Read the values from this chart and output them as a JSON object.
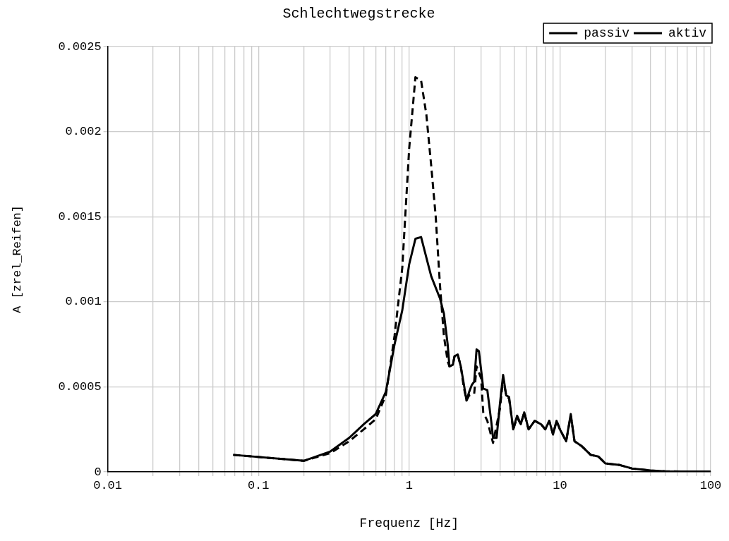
{
  "chart_data": {
    "type": "line",
    "title": "Schlechtwegstrecke",
    "xlabel": "Frequenz [Hz]",
    "ylabel": "A [zrel_Reifen]",
    "log": "x",
    "grid": true,
    "legend": "top right",
    "marker": "none",
    "xlim": [
      0.01,
      100
    ],
    "ylim": [
      0,
      0.0025
    ],
    "xticks": [
      0.01,
      {
        "value": 0.02,
        "label": null
      },
      {
        "value": 0.03,
        "label": null
      },
      {
        "value": 0.04,
        "label": null
      },
      {
        "value": 0.05,
        "label": null
      },
      {
        "value": 0.06,
        "label": null
      },
      {
        "value": 0.07,
        "label": null
      },
      {
        "value": 0.08,
        "label": null
      },
      {
        "value": 0.09,
        "label": null
      },
      0.1,
      {
        "value": 0.2,
        "label": null
      },
      {
        "value": 0.3,
        "label": null
      },
      {
        "value": 0.4,
        "label": null
      },
      {
        "value": 0.5,
        "label": null
      },
      {
        "value": 0.6,
        "label": null
      },
      {
        "value": 0.7,
        "label": null
      },
      {
        "value": 0.8,
        "label": null
      },
      {
        "value": 0.9,
        "label": null
      },
      1,
      {
        "value": 2,
        "label": null
      },
      {
        "value": 3,
        "label": null
      },
      {
        "value": 4,
        "label": null
      },
      {
        "value": 5,
        "label": null
      },
      {
        "value": 6,
        "label": null
      },
      {
        "value": 7,
        "label": null
      },
      {
        "value": 8,
        "label": null
      },
      {
        "value": 9,
        "label": null
      },
      10,
      {
        "value": 20,
        "label": null
      },
      {
        "value": 30,
        "label": null
      },
      {
        "value": 40,
        "label": null
      },
      {
        "value": 50,
        "label": null
      },
      {
        "value": 60,
        "label": null
      },
      {
        "value": 70,
        "label": null
      },
      {
        "value": 80,
        "label": null
      },
      {
        "value": 90,
        "label": null
      },
      100
    ],
    "yticks": [
      0,
      0.0005,
      0.001,
      0.0015,
      0.002,
      0.0025
    ],
    "series": [
      {
        "name": "passiv",
        "color": "#000000",
        "line_style": "dashed",
        "x": [
          0.068,
          0.2,
          0.3,
          0.4,
          0.5,
          0.6,
          0.7,
          0.8,
          0.9,
          1.0,
          1.1,
          1.2,
          1.3,
          1.4,
          1.5,
          1.6,
          1.7,
          1.8,
          1.85,
          1.95,
          2.0,
          2.1,
          2.2,
          2.3,
          2.4,
          2.5,
          2.7,
          2.8,
          3.0,
          3.1,
          3.3,
          3.6,
          4.0,
          4.2,
          4.4,
          4.6,
          4.9,
          5.2,
          5.5,
          5.8,
          6.2,
          6.8,
          7.5,
          8,
          8.5,
          9,
          9.5,
          10,
          11,
          11.8,
          12.5,
          14,
          16,
          18,
          20,
          25,
          30,
          40,
          50,
          70,
          100
        ],
        "values": [
          0.0001,
          6.5e-05,
          0.00011,
          0.00018,
          0.00025,
          0.00031,
          0.00045,
          0.0008,
          0.0012,
          0.0019,
          0.00232,
          0.0023,
          0.0021,
          0.0018,
          0.0015,
          0.0011,
          0.0008,
          0.00065,
          0.00062,
          0.00063,
          0.00068,
          0.00069,
          0.00062,
          0.0005,
          0.00042,
          0.00045,
          0.00046,
          0.00062,
          0.00055,
          0.00035,
          0.0003,
          0.00017,
          0.00037,
          0.00055,
          0.00045,
          0.00043,
          0.00025,
          0.00032,
          0.00028,
          0.00035,
          0.00025,
          0.0003,
          0.00028,
          0.00025,
          0.0003,
          0.00022,
          0.0003,
          0.00025,
          0.00018,
          0.00033,
          0.00018,
          0.00015,
          0.0001,
          9e-05,
          5e-05,
          4e-05,
          2e-05,
          8e-06,
          3e-06,
          2e-06,
          2e-06
        ]
      },
      {
        "name": "aktiv",
        "color": "#000000",
        "line_style": "solid",
        "x": [
          0.068,
          0.2,
          0.3,
          0.4,
          0.5,
          0.6,
          0.7,
          0.8,
          0.9,
          1.0,
          1.1,
          1.2,
          1.3,
          1.4,
          1.6,
          1.7,
          1.8,
          1.85,
          1.95,
          2.0,
          2.1,
          2.2,
          2.3,
          2.4,
          2.5,
          2.6,
          2.7,
          2.8,
          2.9,
          3.0,
          3.1,
          3.3,
          3.5,
          3.6,
          3.8,
          4.0,
          4.2,
          4.4,
          4.6,
          4.9,
          5.2,
          5.5,
          5.8,
          6.2,
          6.8,
          7.5,
          8,
          8.5,
          9,
          9.5,
          10,
          11,
          11.8,
          12.5,
          14,
          16,
          18,
          20,
          25,
          30,
          40,
          50,
          70,
          100
        ],
        "values": [
          0.0001,
          6.5e-05,
          0.00012,
          0.0002,
          0.00028,
          0.00034,
          0.00047,
          0.00075,
          0.00095,
          0.00122,
          0.00137,
          0.00138,
          0.00126,
          0.00115,
          0.00102,
          0.00093,
          0.00075,
          0.00062,
          0.00063,
          0.00068,
          0.00069,
          0.00062,
          0.00052,
          0.00042,
          0.00047,
          0.00051,
          0.00053,
          0.00072,
          0.00071,
          0.0006,
          0.00049,
          0.00048,
          0.0003,
          0.0002,
          0.0002,
          0.0004,
          0.00057,
          0.00045,
          0.00044,
          0.00025,
          0.00033,
          0.00028,
          0.00035,
          0.00025,
          0.0003,
          0.00028,
          0.00025,
          0.0003,
          0.00022,
          0.0003,
          0.00025,
          0.00018,
          0.00034,
          0.00018,
          0.00015,
          0.0001,
          9e-05,
          5e-05,
          4e-05,
          2e-05,
          8e-06,
          3e-06,
          2e-06,
          2e-06
        ]
      }
    ]
  }
}
